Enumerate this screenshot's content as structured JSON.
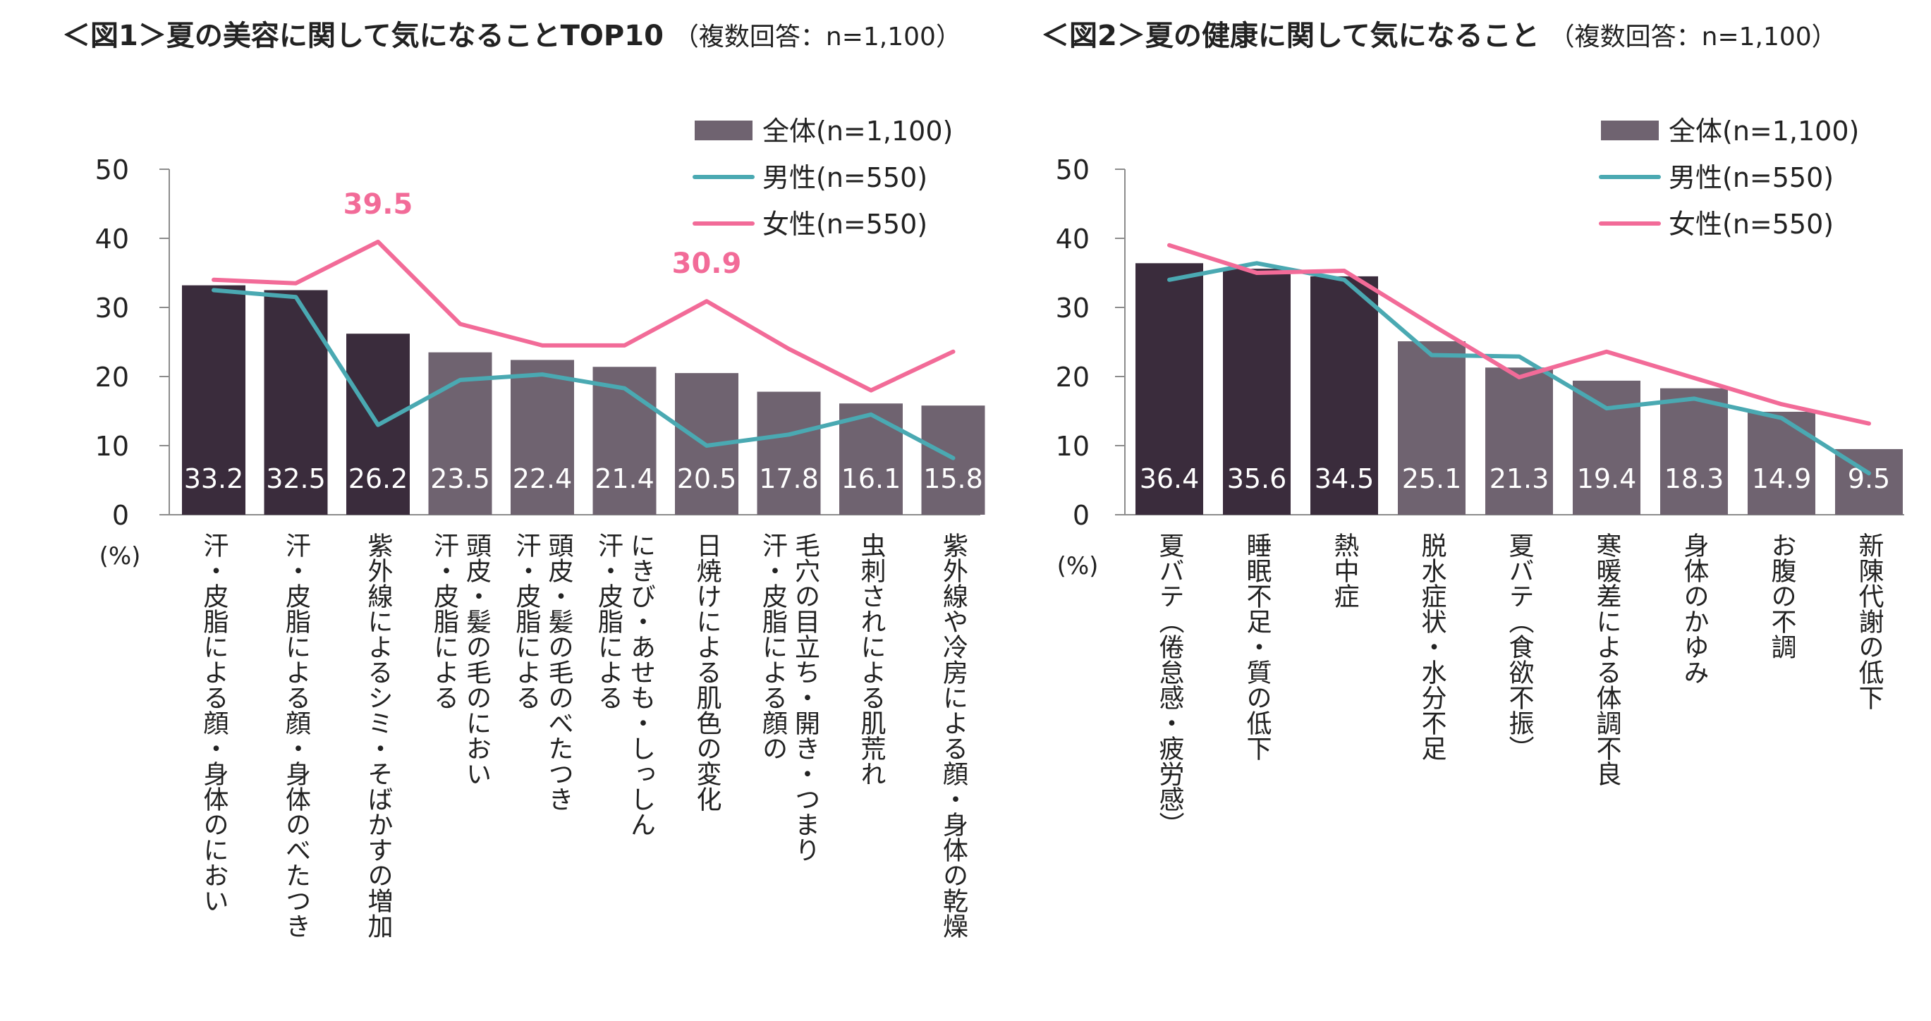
{
  "colors": {
    "bar_dark": "#3a2c3c",
    "bar_light": "#6f6370",
    "male": "#4aa9b2",
    "female": "#f26b98",
    "axis": "#8c8c8c",
    "bar_label": "#ffffff"
  },
  "chart_data": [
    {
      "type": "bar",
      "title": "＜図1＞夏の美容に関して気になることTOP10",
      "subtitle": "（複数回答：n=1,100）",
      "ylabel": "(%)",
      "ylim": [
        0,
        50
      ],
      "yticks": [
        "0",
        "10",
        "20",
        "30",
        "40",
        "50"
      ],
      "legend_position": "top-right",
      "categories": [
        "汗・皮脂による顔・身体のにおい",
        "汗・皮脂による顔・身体のべたつき",
        "紫外線によるシミ・そばかすの増加",
        "汗・皮脂による頭皮・髪の毛のにおい",
        "汗・皮脂による頭皮・髪の毛のべたつき",
        "汗・皮脂によるにきび・あせも・しっしん",
        "日焼けによる肌色の変化",
        "汗・皮脂による顔の毛穴の目立ち・開き・つまり",
        "虫刺されによる肌荒れ",
        "紫外線や冷房による顔・身体の乾燥"
      ],
      "category_lines": [
        [
          "汗・皮脂による顔・身体のにおい"
        ],
        [
          "汗・皮脂による顔・身体のべたつき"
        ],
        [
          "紫外線によるシミ・そばかすの増加"
        ],
        [
          "汗・皮脂による",
          "頭皮・髪の毛のにおい"
        ],
        [
          "汗・皮脂による",
          "頭皮・髪の毛のべたつき"
        ],
        [
          "汗・皮脂による",
          "にきび・あせも・しっしん"
        ],
        [
          "日焼けによる肌色の変化"
        ],
        [
          "汗・皮脂による顔の",
          "毛穴の目立ち・開き・つまり"
        ],
        [
          "虫刺されによる肌荒れ"
        ],
        [
          "紫外線や冷房による顔・身体の乾燥"
        ]
      ],
      "series": [
        {
          "name": "全体(n=1,100)",
          "kind": "bar",
          "values": [
            33.2,
            32.5,
            26.2,
            23.5,
            22.4,
            21.4,
            20.5,
            17.8,
            16.1,
            15.8
          ],
          "labels": [
            "33.2",
            "32.5",
            "26.2",
            "23.5",
            "22.4",
            "21.4",
            "20.5",
            "17.8",
            "16.1",
            "15.8"
          ],
          "dark_count": 3
        },
        {
          "name": "男性(n=550)",
          "kind": "line",
          "values": [
            32.5,
            31.5,
            13.0,
            19.5,
            20.3,
            18.3,
            10.0,
            11.6,
            14.5,
            8.2
          ]
        },
        {
          "name": "女性(n=550)",
          "kind": "line",
          "values": [
            34.0,
            33.5,
            39.5,
            27.6,
            24.5,
            24.5,
            30.9,
            24.0,
            18.0,
            23.6
          ]
        }
      ],
      "annotations": [
        {
          "text": "39.5",
          "category_index": 2,
          "value": 39.5
        },
        {
          "text": "30.9",
          "category_index": 6,
          "value": 30.9
        }
      ]
    },
    {
      "type": "bar",
      "title": "＜図2＞夏の健康に関して気になること",
      "subtitle": "（複数回答：n=1,100）",
      "ylabel": "(%)",
      "ylim": [
        0,
        50
      ],
      "yticks": [
        "0",
        "10",
        "20",
        "30",
        "40",
        "50"
      ],
      "legend_position": "top-right",
      "categories": [
        "夏バテ（倦怠感・疲労感）",
        "睡眠不足・質の低下",
        "熱中症",
        "脱水症状・水分不足",
        "夏バテ（食欲不振）",
        "寒暖差による体調不良",
        "身体のかゆみ",
        "お腹の不調",
        "新陳代謝の低下"
      ],
      "category_lines": [
        [
          "夏バテ（倦怠感・疲労感）"
        ],
        [
          "睡眠不足・質の低下"
        ],
        [
          "熱中症"
        ],
        [
          "脱水症状・水分不足"
        ],
        [
          "夏バテ（食欲不振）"
        ],
        [
          "寒暖差による体調不良"
        ],
        [
          "身体のかゆみ"
        ],
        [
          "お腹の不調"
        ],
        [
          "新陳代謝の低下"
        ]
      ],
      "series": [
        {
          "name": "全体(n=1,100)",
          "kind": "bar",
          "values": [
            36.4,
            35.6,
            34.5,
            25.1,
            21.3,
            19.4,
            18.3,
            14.9,
            9.5
          ],
          "labels": [
            "36.4",
            "35.6",
            "34.5",
            "25.1",
            "21.3",
            "19.4",
            "18.3",
            "14.9",
            "9.5"
          ],
          "dark_count": 3
        },
        {
          "name": "男性(n=550)",
          "kind": "line",
          "values": [
            34.0,
            36.4,
            34.0,
            23.1,
            22.9,
            15.4,
            16.8,
            14.0,
            6.0
          ]
        },
        {
          "name": "女性(n=550)",
          "kind": "line",
          "values": [
            39.0,
            35.0,
            35.3,
            27.5,
            19.9,
            23.6,
            19.8,
            16.0,
            13.2
          ]
        }
      ],
      "annotations": []
    }
  ]
}
